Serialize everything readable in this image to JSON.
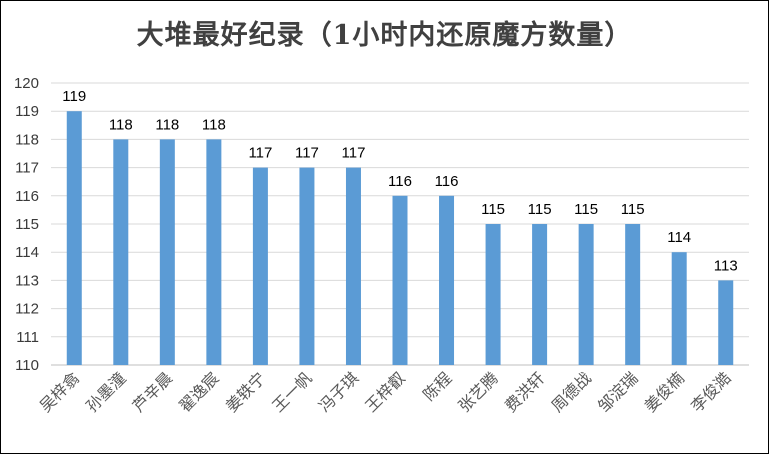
{
  "chart_data": {
    "type": "bar",
    "title": "大堆最好纪录（1小时内还原魔方数量）",
    "xlabel": "",
    "ylabel": "",
    "categories": [
      "吴梓翕",
      "孙墨潼",
      "芦辛晨",
      "翟逸宸",
      "姜轶宁",
      "王一帆",
      "冯子琪",
      "王梓叡",
      "陈程",
      "张艺腾",
      "费洪轩",
      "周德战",
      "邹淀瑞",
      "姜俊楠",
      "李俊澔"
    ],
    "values": [
      119,
      118,
      118,
      118,
      117,
      117,
      117,
      116,
      116,
      115,
      115,
      115,
      115,
      114,
      113
    ],
    "ylim": [
      110,
      120
    ],
    "yticks": [
      110,
      111,
      112,
      113,
      114,
      115,
      116,
      117,
      118,
      119,
      120
    ],
    "grid": true,
    "legend": "none",
    "bar_color": "#5b9bd5",
    "grid_color": "#d9d9d9"
  }
}
